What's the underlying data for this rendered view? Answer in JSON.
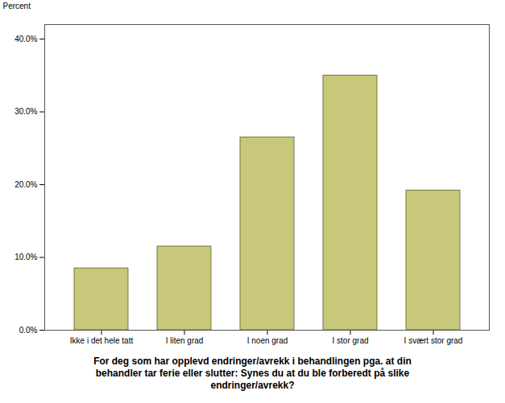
{
  "chart_data": {
    "type": "bar",
    "categories": [
      "Ikke i det hele tatt",
      "I liten grad",
      "I noen grad",
      "I stor grad",
      "I svært stor grad"
    ],
    "values": [
      8.5,
      11.5,
      26.5,
      35.0,
      19.2
    ],
    "color": "#c8c87a",
    "ylabel": "Percent",
    "xlabel": "For deg som har opplevd endringer/avrekk i behandlingen pga. at din\nbehandler tar ferie eller slutter: Synes du at du ble forberedt på slike\nendringer/avrekk?",
    "ylim": [
      0,
      42
    ],
    "yticks": [
      {
        "value": 0,
        "label": "0.0%"
      },
      {
        "value": 10,
        "label": "10.0%"
      },
      {
        "value": 20,
        "label": "20.0%"
      },
      {
        "value": 30,
        "label": "30.0%"
      },
      {
        "value": 40,
        "label": "40.0%"
      }
    ],
    "grid": false
  }
}
